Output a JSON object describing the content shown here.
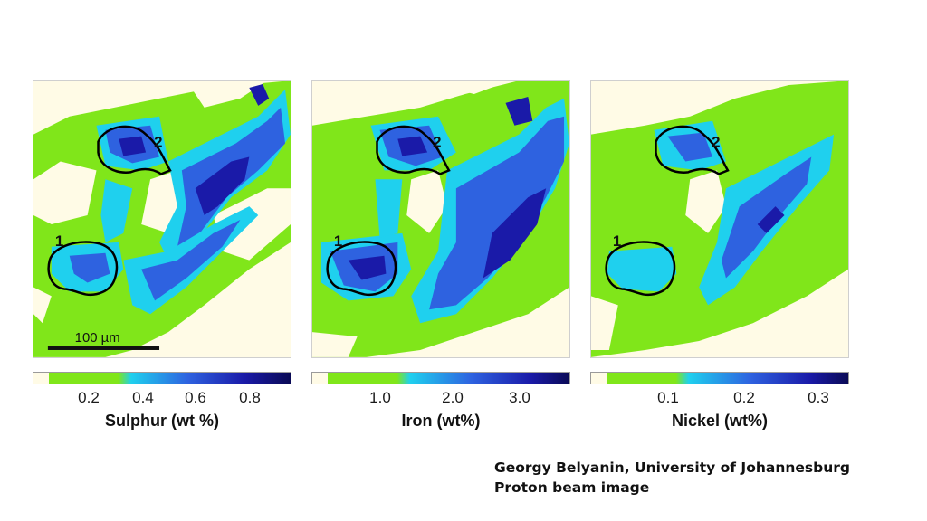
{
  "panels": [
    {
      "element": "Sulphur",
      "label": "Sulphur (wt %)",
      "ticks": [
        "0.2",
        "0.4",
        "0.6",
        "0.8"
      ],
      "regions": [
        "1",
        "2"
      ]
    },
    {
      "element": "Iron",
      "label": "Iron (wt%)",
      "ticks": [
        "1.0",
        "2.0",
        "3.0"
      ],
      "regions": [
        "1",
        "2"
      ]
    },
    {
      "element": "Nickel",
      "label": "Nickel (wt%)",
      "ticks": [
        "0.1",
        "0.2",
        "0.3"
      ],
      "regions": [
        "1",
        "2"
      ]
    }
  ],
  "scale_bar": "100 µm",
  "credit": {
    "line1": "Georgy Belyanin, University of Johannesburg",
    "line2": "Proton beam image"
  },
  "colors": {
    "background": "#fffbe6",
    "low": "#80e61a",
    "mid_low": "#1fd0ee",
    "mid": "#2e62e0",
    "high": "#1a1aa8",
    "max": "#0a0a55"
  }
}
